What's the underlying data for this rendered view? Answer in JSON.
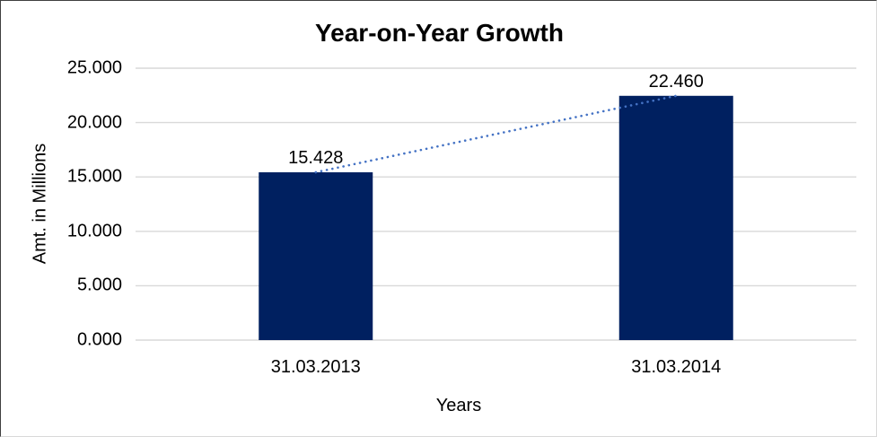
{
  "chart_data": {
    "type": "bar",
    "title": "Year-on-Year Growth",
    "xlabel": "Years",
    "ylabel": "Amt. in Millions",
    "categories": [
      "31.03.2013",
      "31.03.2014"
    ],
    "values": [
      15.428,
      22.46
    ],
    "value_labels": [
      "15.428",
      "22.460"
    ],
    "ylim": [
      0,
      25
    ],
    "ytick_labels": [
      "0.000",
      "5.000",
      "10.000",
      "15.000",
      "20.000",
      "25.000"
    ],
    "grid": true,
    "legend_position": "none",
    "bar_color": "#002060",
    "trendline_color": "#4472c4",
    "trendline_style": "dotted",
    "gridline_color": "#d9d9d9",
    "background_color": "#ffffff"
  }
}
